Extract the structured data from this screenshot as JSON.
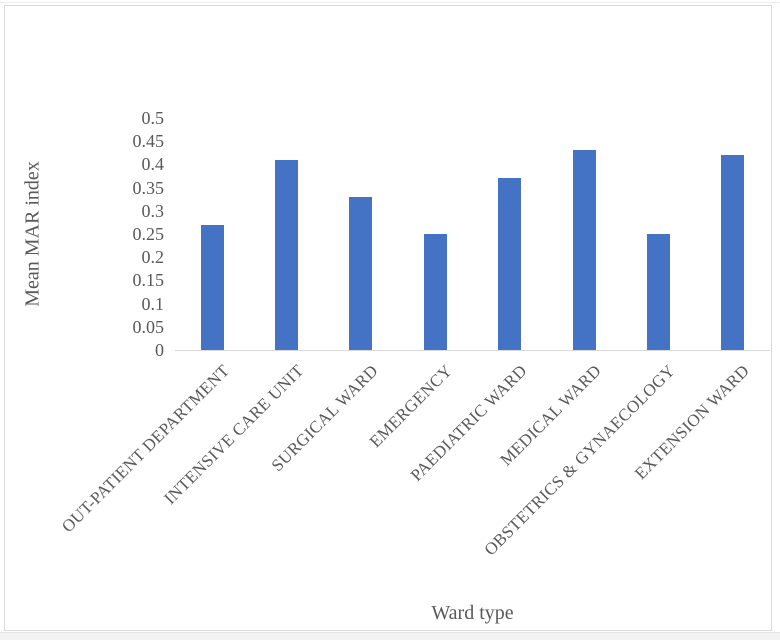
{
  "figure": {
    "kind": "document-figure-bar-chart",
    "border_color": "#d9d9d9",
    "background_color": "#ffffff"
  },
  "chart_data": {
    "type": "bar",
    "title": "",
    "xlabel": "Ward type",
    "ylabel": "Mean MAR index",
    "categories": [
      "OUT-PATIENT DEPARTMENT",
      "INTENSIVE CARE UNIT",
      "SURGICAL WARD",
      "EMERGENCY",
      "PAEDIATRIC WARD",
      "MEDICAL WARD",
      "OBSTETRICS & GYNAECOLOGY",
      "EXTENSION WARD"
    ],
    "values": [
      0.27,
      0.41,
      0.33,
      0.25,
      0.37,
      0.43,
      0.25,
      0.42
    ],
    "ylim": [
      0,
      0.5
    ],
    "ytick_step": 0.05,
    "yticks": [
      "0.5",
      "0.45",
      "0.4",
      "0.35",
      "0.3",
      "0.25",
      "0.2",
      "0.15",
      "0.1",
      "0.05",
      "0"
    ],
    "grid": false,
    "legend": "none",
    "x_tick_rotation_deg": -45,
    "bar_color": "#4472c4",
    "axis_line_color": "#d9d9d9",
    "text_color": "#595959"
  }
}
